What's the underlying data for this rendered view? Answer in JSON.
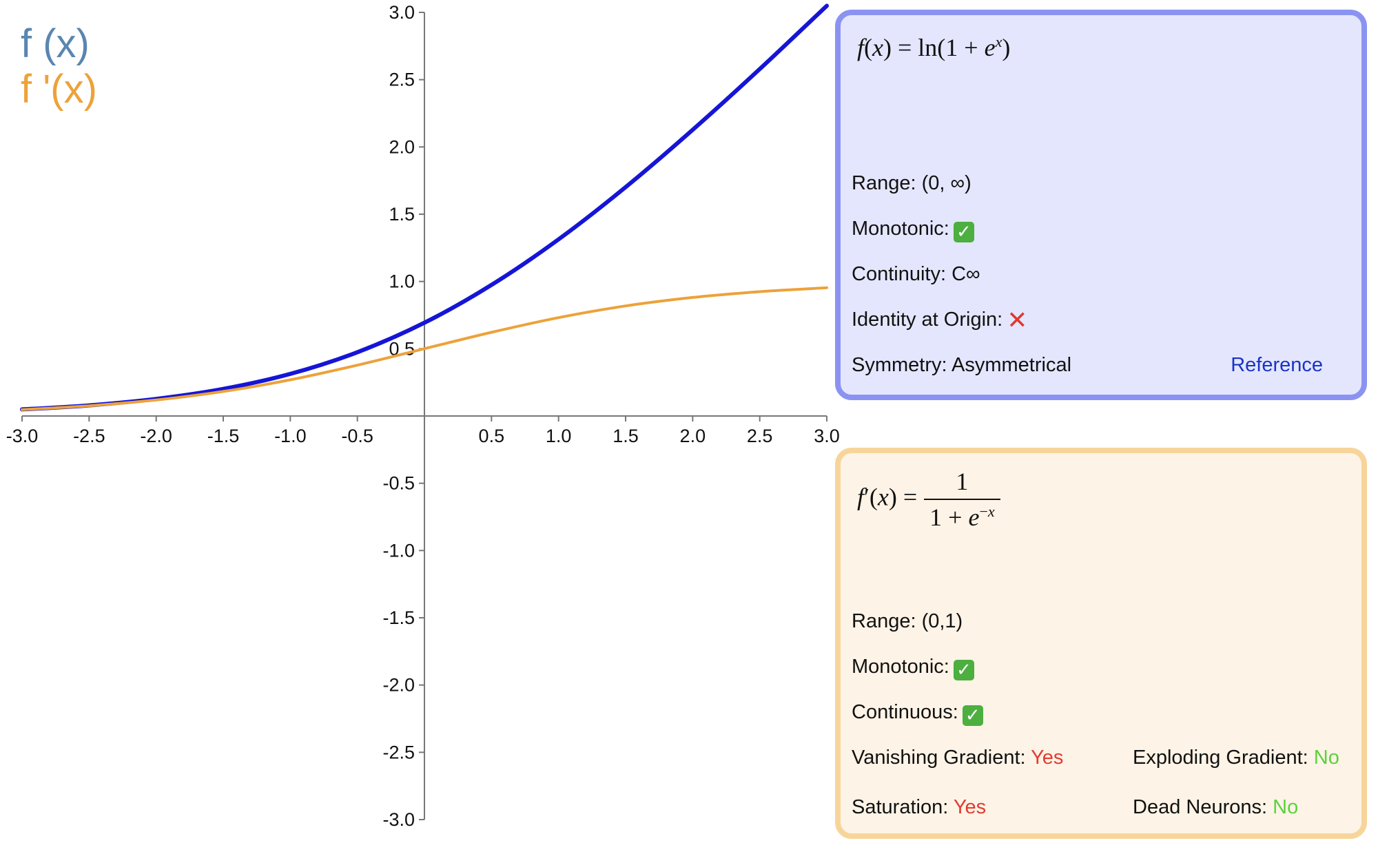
{
  "legend": {
    "f_label": "f (x)",
    "fp_label": "f '(x)"
  },
  "chart_data": {
    "type": "line",
    "title": "",
    "xlabel": "",
    "ylabel": "",
    "xlim": [
      -3.0,
      3.0
    ],
    "ylim": [
      -3.0,
      3.0
    ],
    "x_ticks": [
      "-3.0",
      "-2.5",
      "-2.0",
      "-1.5",
      "-1.0",
      "-0.5",
      "0.5",
      "1.0",
      "1.5",
      "2.0",
      "2.5",
      "3.0"
    ],
    "y_ticks": [
      "3.0",
      "2.5",
      "2.0",
      "1.5",
      "1.0",
      "0.5",
      "-0.5",
      "-1.0",
      "-1.5",
      "-2.0",
      "-2.5",
      "-3.0"
    ],
    "grid": false,
    "legend_position": "top-left",
    "x": [
      -3.0,
      -2.5,
      -2.0,
      -1.5,
      -1.0,
      -0.5,
      0.0,
      0.5,
      1.0,
      1.5,
      2.0,
      2.5,
      3.0
    ],
    "series": [
      {
        "name": "f (x)",
        "color": "#1515d6",
        "values": [
          0.049,
          0.079,
          0.127,
          0.201,
          0.313,
          0.474,
          0.693,
          0.974,
          1.313,
          1.701,
          2.127,
          2.579,
          3.049
        ]
      },
      {
        "name": "f '(x)",
        "color": "#eca23a",
        "values": [
          0.047,
          0.076,
          0.119,
          0.182,
          0.269,
          0.378,
          0.5,
          0.622,
          0.731,
          0.818,
          0.881,
          0.924,
          0.953
        ]
      }
    ]
  },
  "panel_f": {
    "border_color": "#8b93f2",
    "background": "#e4e6fd",
    "range_label": "Range: (0, ∞)",
    "monotonic_label": "Monotonic:",
    "monotonic_icon": "check-icon",
    "continuity_label": "Continuity: C∞",
    "identity_label": "Identity at Origin:",
    "identity_icon": "cross-icon",
    "symmetry_label": "Symmetry: Asymmetrical",
    "reference_link": "Reference"
  },
  "panel_fp": {
    "border_color": "#f7d59a",
    "background": "#fdf3e6",
    "range_label": "Range: (0,1)",
    "monotonic_label": "Monotonic:",
    "monotonic_icon": "check-icon",
    "continuous_label": "Continuous:",
    "continuous_icon": "check-icon",
    "vanishing_label": "Vanishing Gradient:",
    "vanishing_value": "Yes",
    "exploding_label": "Exploding Gradient:",
    "exploding_value": "No",
    "saturation_label": "Saturation:",
    "saturation_value": "Yes",
    "dead_label": "Dead Neurons:",
    "dead_value": "No"
  }
}
